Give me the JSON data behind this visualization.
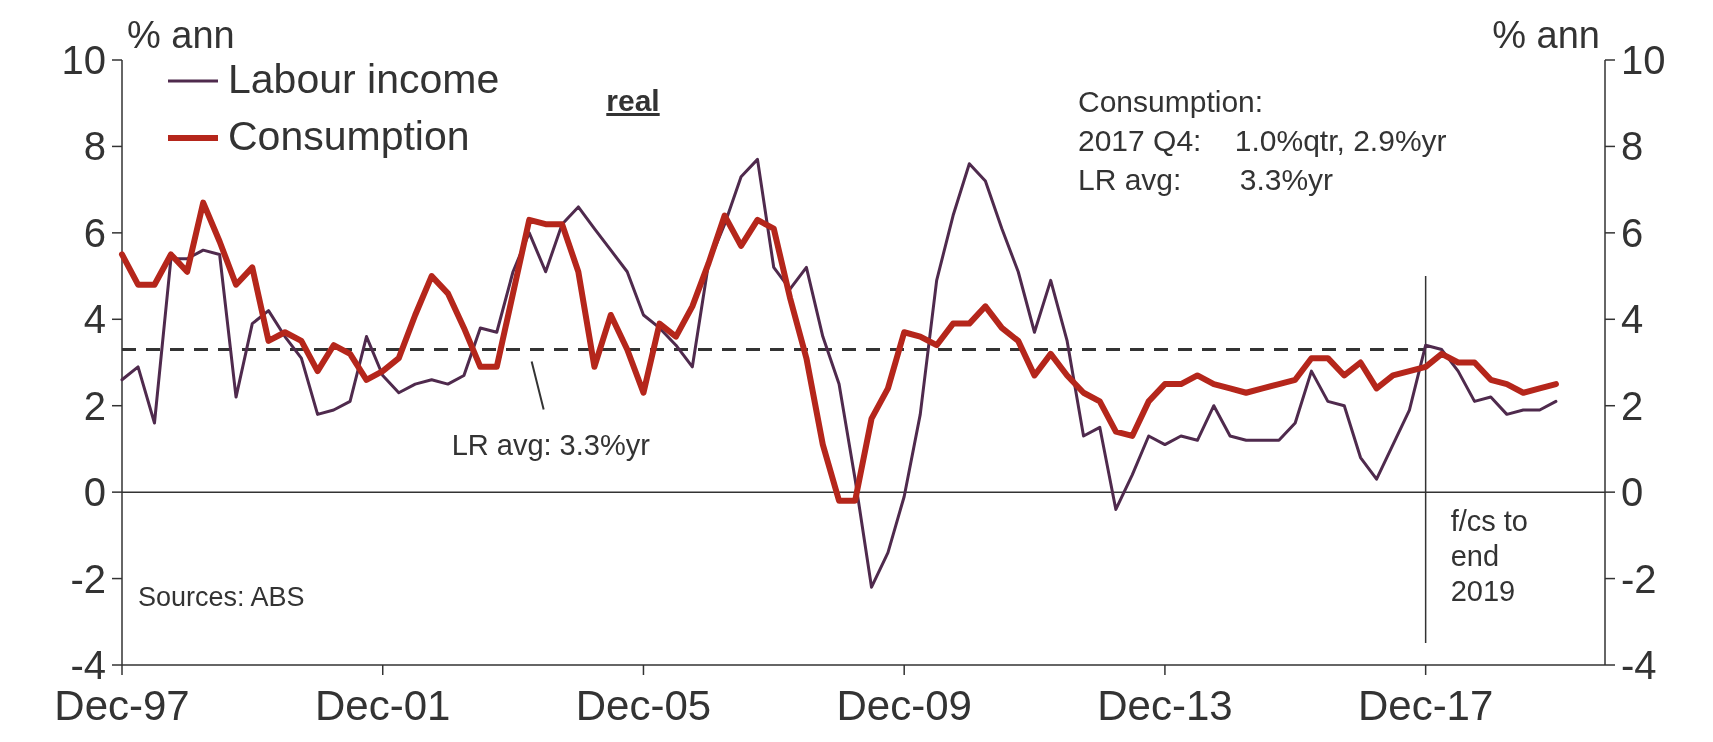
{
  "chart_data": {
    "type": "line",
    "ylabel": "% ann",
    "y2label": "% ann",
    "x": [
      "1997-12",
      "1998-03",
      "1998-06",
      "1998-09",
      "1998-12",
      "1999-03",
      "1999-06",
      "1999-09",
      "1999-12",
      "2000-03",
      "2000-06",
      "2000-09",
      "2000-12",
      "2001-03",
      "2001-06",
      "2001-09",
      "2001-12",
      "2002-03",
      "2002-06",
      "2002-09",
      "2002-12",
      "2003-03",
      "2003-06",
      "2003-09",
      "2003-12",
      "2004-03",
      "2004-06",
      "2004-09",
      "2004-12",
      "2005-03",
      "2005-06",
      "2005-09",
      "2005-12",
      "2006-03",
      "2006-06",
      "2006-09",
      "2006-12",
      "2007-03",
      "2007-06",
      "2007-09",
      "2007-12",
      "2008-03",
      "2008-06",
      "2008-09",
      "2008-12",
      "2009-03",
      "2009-06",
      "2009-09",
      "2009-12",
      "2010-03",
      "2010-06",
      "2010-09",
      "2010-12",
      "2011-03",
      "2011-06",
      "2011-09",
      "2011-12",
      "2012-03",
      "2012-06",
      "2012-09",
      "2012-12",
      "2013-03",
      "2013-06",
      "2013-09",
      "2013-12",
      "2014-03",
      "2014-06",
      "2014-09",
      "2014-12",
      "2015-03",
      "2015-06",
      "2015-09",
      "2015-12",
      "2016-03",
      "2016-06",
      "2016-09",
      "2016-12",
      "2017-03",
      "2017-06",
      "2017-09",
      "2017-12",
      "2018-03",
      "2018-06",
      "2018-09",
      "2018-12",
      "2019-03",
      "2019-06",
      "2019-09",
      "2019-12"
    ],
    "series": [
      {
        "name": "Labour income",
        "color": "#4f2a4d",
        "values": [
          2.6,
          2.9,
          1.6,
          5.4,
          5.4,
          5.6,
          5.5,
          2.2,
          3.9,
          4.2,
          3.6,
          3.1,
          1.8,
          1.9,
          2.1,
          3.6,
          2.7,
          2.3,
          2.5,
          2.6,
          2.5,
          2.7,
          3.8,
          3.7,
          5.1,
          6.0,
          5.1,
          6.2,
          6.6,
          6.1,
          5.6,
          5.1,
          4.1,
          3.8,
          3.4,
          2.9,
          5.3,
          6.2,
          7.3,
          7.7,
          5.2,
          4.7,
          5.2,
          3.6,
          2.5,
          0.3,
          -2.2,
          -1.4,
          -0.1,
          1.8,
          4.9,
          6.4,
          7.6,
          7.2,
          6.1,
          5.1,
          3.7,
          4.9,
          3.5,
          1.3,
          1.5,
          -0.4,
          0.4,
          1.3,
          1.1,
          1.3,
          1.2,
          2.0,
          1.3,
          1.2,
          1.2,
          1.2,
          1.6,
          2.8,
          2.1,
          2.0,
          0.8,
          0.3,
          1.1,
          1.9,
          3.4,
          3.3,
          2.8,
          2.1,
          2.2,
          1.8,
          1.9,
          1.9,
          2.1
        ]
      },
      {
        "name": "Consumption",
        "color": "#b5261b",
        "values": [
          5.5,
          4.8,
          4.8,
          5.5,
          5.1,
          6.7,
          5.8,
          4.8,
          5.2,
          3.5,
          3.7,
          3.5,
          2.8,
          3.4,
          3.2,
          2.6,
          2.8,
          3.1,
          4.1,
          5.0,
          4.6,
          3.8,
          2.9,
          2.9,
          4.6,
          6.3,
          6.2,
          6.2,
          5.1,
          2.9,
          4.1,
          3.3,
          2.3,
          3.9,
          3.6,
          4.3,
          5.3,
          6.4,
          5.7,
          6.3,
          6.1,
          4.5,
          3.1,
          1.1,
          -0.2,
          -0.2,
          1.7,
          2.4,
          3.7,
          3.6,
          3.4,
          3.9,
          3.9,
          4.3,
          3.8,
          3.5,
          2.7,
          3.2,
          2.7,
          2.3,
          2.1,
          1.4,
          1.3,
          2.1,
          2.5,
          2.5,
          2.7,
          2.5,
          2.4,
          2.3,
          2.4,
          2.5,
          2.6,
          3.1,
          3.1,
          2.7,
          3.0,
          2.4,
          2.7,
          2.8,
          2.9,
          3.2,
          3.0,
          3.0,
          2.6,
          2.5,
          2.3,
          2.4,
          2.5
        ]
      }
    ],
    "xlim": [
      "1997-12",
      "2020-09"
    ],
    "xticks": [
      {
        "value": "1997-12",
        "label": "Dec-97"
      },
      {
        "value": "2001-12",
        "label": "Dec-01"
      },
      {
        "value": "2005-12",
        "label": "Dec-05"
      },
      {
        "value": "2009-12",
        "label": "Dec-09"
      },
      {
        "value": "2013-12",
        "label": "Dec-13"
      },
      {
        "value": "2017-12",
        "label": "Dec-17"
      }
    ],
    "ylim": [
      -4,
      10
    ],
    "yticks": [
      -4,
      -2,
      0,
      2,
      4,
      6,
      8,
      10
    ],
    "y2lim": [
      -4,
      10
    ],
    "y2ticks": [
      -4,
      -2,
      0,
      2,
      4,
      6,
      8,
      10
    ],
    "ref_lines": [
      {
        "axis": "y",
        "value": 0
      },
      {
        "axis": "y",
        "value": 3.3,
        "label": "LR avg: 3.3%yr",
        "line_style": "dashed"
      },
      {
        "axis": "x",
        "value": "2017-12",
        "label": "f/cs to\nend\n2019"
      }
    ],
    "annotations": [
      "real",
      "Consumption:\n2017 Q4:    1.0%qtr, 2.9%yr\nLR avg:       3.3%yr",
      "Sources: ABS"
    ],
    "legend": "top left",
    "grid": false
  }
}
